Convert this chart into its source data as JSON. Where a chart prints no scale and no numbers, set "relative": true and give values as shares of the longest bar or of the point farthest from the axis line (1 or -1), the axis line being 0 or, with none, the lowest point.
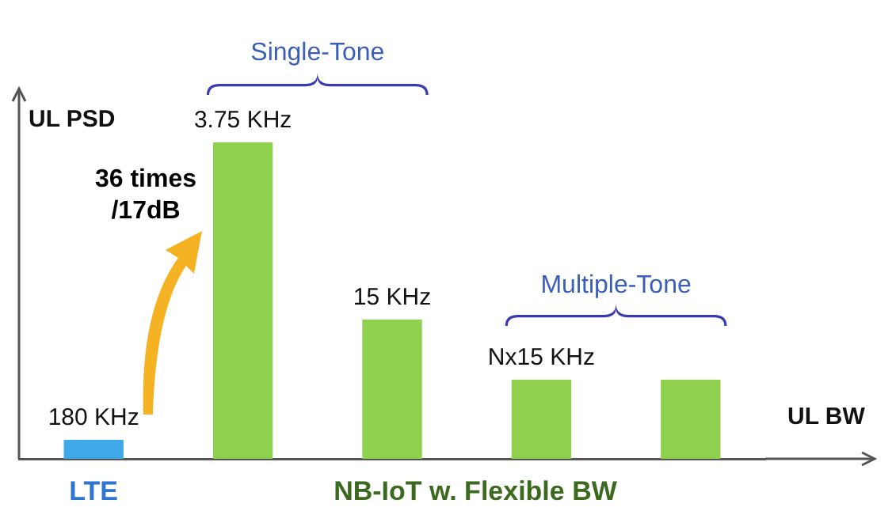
{
  "chart_data": {
    "type": "bar",
    "ylabel": "UL PSD",
    "xlabel": "UL BW",
    "relative": true,
    "tick_labels": false,
    "categories": [
      "180 KHz",
      "3.75 KHz",
      "15 KHz",
      "Nx15 KHz",
      null
    ],
    "values": [
      0.06,
      1,
      0.44,
      0.25,
      0.25
    ],
    "colors": [
      "#3fa9e8",
      "#8fd14f",
      "#8fd14f",
      "#8fd14f",
      "#8fd14f"
    ],
    "annotations": [
      "LTE",
      "NB-IoT w. Flexible BW",
      "Single-Tone",
      "Multiple-Tone",
      "36 times\n/17dB"
    ]
  }
}
